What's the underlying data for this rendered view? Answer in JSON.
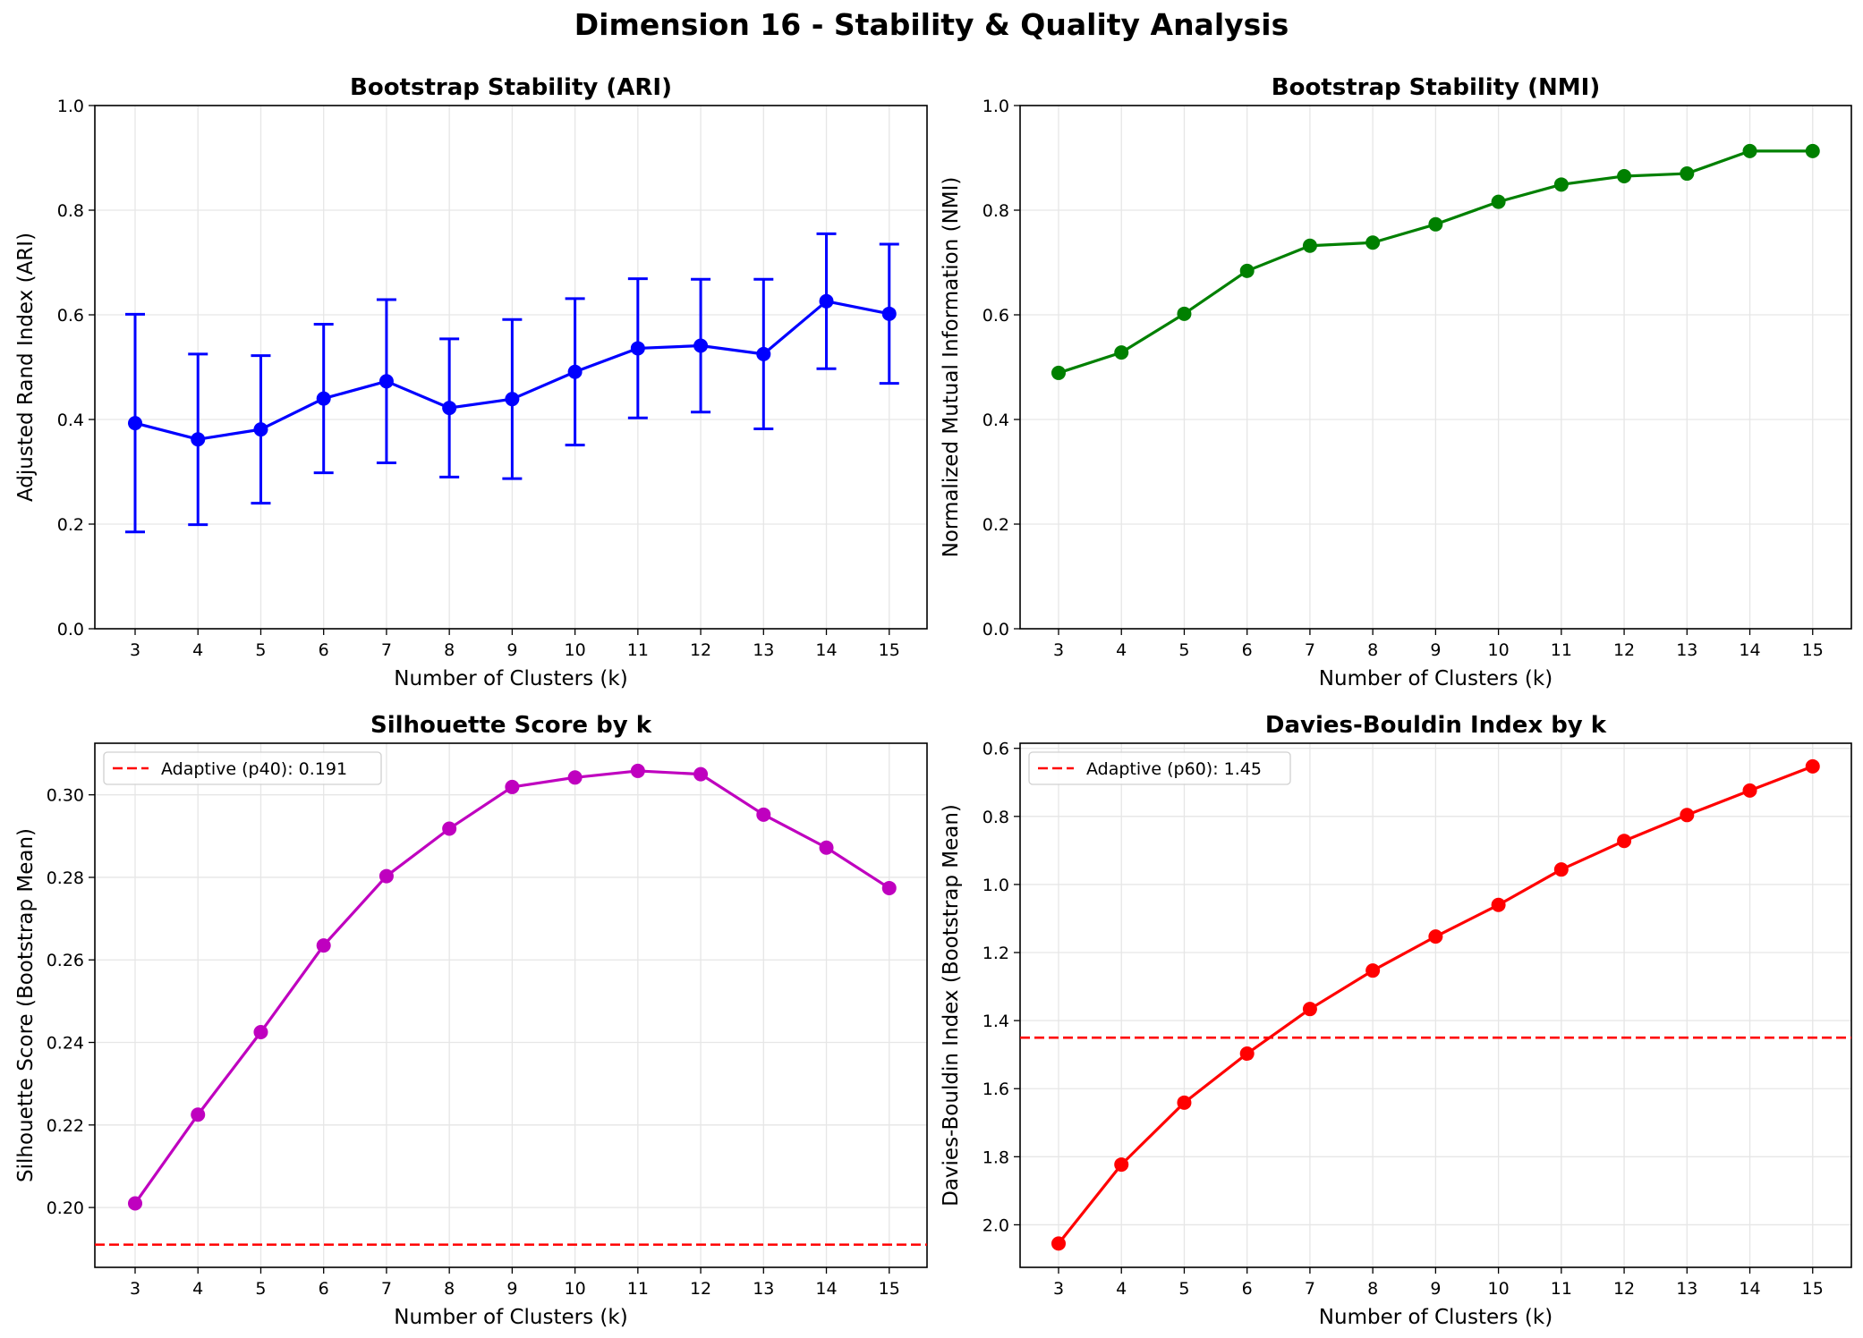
{
  "suptitle": "Dimension 16 - Stability & Quality Analysis",
  "chart_data": [
    {
      "id": "ari",
      "type": "line",
      "title": "Bootstrap Stability (ARI)",
      "xlabel": "Number of Clusters (k)",
      "ylabel": "Adjusted Rand Index (ARI)",
      "x": [
        3,
        4,
        5,
        6,
        7,
        8,
        9,
        10,
        11,
        12,
        13,
        14,
        15
      ],
      "series": [
        {
          "values": [
            0.393,
            0.362,
            0.381,
            0.44,
            0.473,
            0.422,
            0.439,
            0.491,
            0.536,
            0.541,
            0.525,
            0.626,
            0.602
          ],
          "error": [
            0.208,
            0.163,
            0.141,
            0.142,
            0.156,
            0.132,
            0.152,
            0.14,
            0.133,
            0.127,
            0.143,
            0.129,
            0.133
          ],
          "color": "#0000ff"
        }
      ],
      "ylim": [
        0,
        1
      ],
      "yticks": [
        "0.0",
        "0.2",
        "0.4",
        "0.6",
        "0.8",
        "1.0"
      ],
      "ytick_values": [
        0,
        0.2,
        0.4,
        0.6,
        0.8,
        1.0
      ],
      "grid": true
    },
    {
      "id": "nmi",
      "type": "line",
      "title": "Bootstrap Stability (NMI)",
      "xlabel": "Number of Clusters (k)",
      "ylabel": "Normalized Mutual Information (NMI)",
      "x": [
        3,
        4,
        5,
        6,
        7,
        8,
        9,
        10,
        11,
        12,
        13,
        14,
        15
      ],
      "series": [
        {
          "values": [
            0.489,
            0.528,
            0.602,
            0.684,
            0.732,
            0.738,
            0.773,
            0.816,
            0.849,
            0.865,
            0.87,
            0.913,
            0.913
          ],
          "color": "#008000"
        }
      ],
      "ylim": [
        0,
        1
      ],
      "yticks": [
        "0.0",
        "0.2",
        "0.4",
        "0.6",
        "0.8",
        "1.0"
      ],
      "ytick_values": [
        0,
        0.2,
        0.4,
        0.6,
        0.8,
        1.0
      ],
      "grid": true
    },
    {
      "id": "sil",
      "type": "line",
      "title": "Silhouette Score by k",
      "xlabel": "Number of Clusters (k)",
      "ylabel": "Silhouette Score (Bootstrap Mean)",
      "x": [
        3,
        4,
        5,
        6,
        7,
        8,
        9,
        10,
        11,
        12,
        13,
        14,
        15
      ],
      "series": [
        {
          "values": [
            0.201,
            0.2225,
            0.2425,
            0.2635,
            0.2803,
            0.2918,
            0.3019,
            0.3042,
            0.3058,
            0.305,
            0.2952,
            0.2872,
            0.2774
          ],
          "color": "#bf00bf"
        }
      ],
      "hline": {
        "value": 0.191,
        "label": "Adaptive (p40): 0.191",
        "color": "#ff0000"
      },
      "legend": "top-left",
      "ylim": [
        0.1855,
        0.3125
      ],
      "yticks": [
        "0.20",
        "0.22",
        "0.24",
        "0.26",
        "0.28",
        "0.30"
      ],
      "ytick_values": [
        0.2,
        0.22,
        0.24,
        0.26,
        0.28,
        0.3
      ],
      "grid": true
    },
    {
      "id": "db",
      "type": "line",
      "title": "Davies-Bouldin Index by k",
      "xlabel": "Number of Clusters (k)",
      "ylabel": "Davies-Bouldin Index (Bootstrap Mean)",
      "x": [
        3,
        4,
        5,
        6,
        7,
        8,
        9,
        10,
        11,
        12,
        13,
        14,
        15
      ],
      "series": [
        {
          "values": [
            2.055,
            1.823,
            1.641,
            1.497,
            1.366,
            1.253,
            1.153,
            1.06,
            0.956,
            0.872,
            0.796,
            0.724,
            0.653
          ],
          "color": "#ff0000"
        }
      ],
      "hline": {
        "value": 1.45,
        "label": "Adaptive (p60): 1.45",
        "color": "#ff0000"
      },
      "legend": "top-left",
      "ylim": [
        2.125,
        0.585
      ],
      "y_inverted": true,
      "yticks": [
        "0.6",
        "0.8",
        "1.0",
        "1.2",
        "1.4",
        "1.6",
        "1.8",
        "2.0"
      ],
      "ytick_values": [
        0.6,
        0.8,
        1.0,
        1.2,
        1.4,
        1.6,
        1.8,
        2.0
      ],
      "grid": true
    }
  ]
}
